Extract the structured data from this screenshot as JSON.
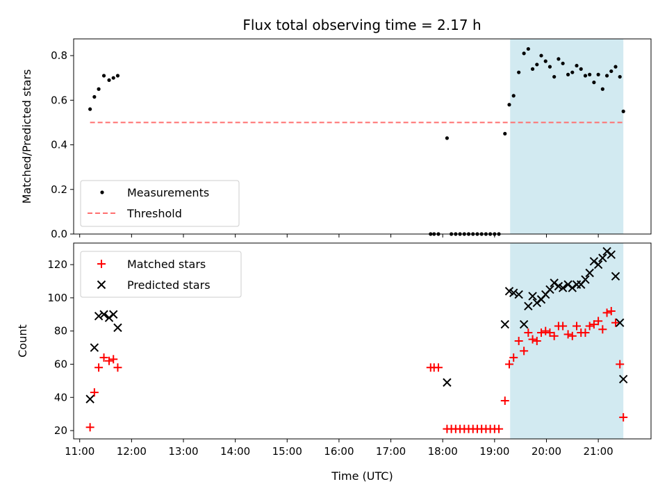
{
  "chart_data": {
    "type": "scatter",
    "title": "Flux total observing time = 2.17 h",
    "colors": {
      "measurements": "#000000",
      "threshold": "#ff6f6f",
      "matched": "#ff0000",
      "predicted": "#000000",
      "highlight": "#add8e6"
    },
    "xlabel": "Time (UTC)",
    "x_ticks": [
      "11:00",
      "12:00",
      "13:00",
      "14:00",
      "15:00",
      "16:00",
      "17:00",
      "18:00",
      "19:00",
      "20:00",
      "21:00"
    ],
    "xlim": [
      "10:53",
      "22:01"
    ],
    "highlight_span": [
      "19:18",
      "21:29"
    ],
    "panels": [
      {
        "ylabel": "Matched/Predicted stars",
        "ylim": [
          0,
          0.875
        ],
        "y_ticks": [
          "0.0",
          "0.2",
          "0.4",
          "0.6",
          "0.8"
        ],
        "legend_position": "lower left",
        "series": [
          {
            "name": "Measurements",
            "marker": "dot",
            "points": [
              [
                "11:12",
                0.56
              ],
              [
                "11:17",
                0.615
              ],
              [
                "11:22",
                0.65
              ],
              [
                "11:28",
                0.71
              ],
              [
                "11:34",
                0.69
              ],
              [
                "11:39",
                0.7
              ],
              [
                "11:44",
                0.71
              ],
              [
                "17:46",
                0.0
              ],
              [
                "17:50",
                0.0
              ],
              [
                "17:55",
                0.0
              ],
              [
                "18:05",
                0.43
              ],
              [
                "18:10",
                0.0
              ],
              [
                "18:15",
                0.0
              ],
              [
                "18:20",
                0.0
              ],
              [
                "18:25",
                0.0
              ],
              [
                "18:30",
                0.0
              ],
              [
                "18:35",
                0.0
              ],
              [
                "18:40",
                0.0
              ],
              [
                "18:45",
                0.0
              ],
              [
                "18:50",
                0.0
              ],
              [
                "18:55",
                0.0
              ],
              [
                "19:00",
                0.0
              ],
              [
                "19:05",
                0.0
              ],
              [
                "19:12",
                0.45
              ],
              [
                "19:17",
                0.58
              ],
              [
                "19:22",
                0.62
              ],
              [
                "19:28",
                0.725
              ],
              [
                "19:34",
                0.81
              ],
              [
                "19:39",
                0.83
              ],
              [
                "19:44",
                0.74
              ],
              [
                "19:49",
                0.76
              ],
              [
                "19:54",
                0.8
              ],
              [
                "19:59",
                0.775
              ],
              [
                "20:04",
                0.75
              ],
              [
                "20:09",
                0.705
              ],
              [
                "20:14",
                0.785
              ],
              [
                "20:19",
                0.765
              ],
              [
                "20:25",
                0.715
              ],
              [
                "20:30",
                0.725
              ],
              [
                "20:35",
                0.755
              ],
              [
                "20:40",
                0.74
              ],
              [
                "20:45",
                0.71
              ],
              [
                "20:50",
                0.715
              ],
              [
                "20:55",
                0.68
              ],
              [
                "21:00",
                0.715
              ],
              [
                "21:05",
                0.65
              ],
              [
                "21:10",
                0.71
              ],
              [
                "21:15",
                0.73
              ],
              [
                "21:20",
                0.75
              ],
              [
                "21:25",
                0.705
              ],
              [
                "21:29",
                0.55
              ]
            ]
          },
          {
            "name": "Threshold",
            "marker": "dashed-line",
            "points": [
              [
                "11:12",
                0.5
              ],
              [
                "21:29",
                0.5
              ]
            ]
          }
        ]
      },
      {
        "ylabel": "Count",
        "ylim": [
          15,
          133
        ],
        "y_ticks": [
          "20",
          "40",
          "60",
          "80",
          "100",
          "120"
        ],
        "legend_position": "upper left",
        "series": [
          {
            "name": "Matched stars",
            "marker": "plus",
            "points": [
              [
                "11:12",
                22
              ],
              [
                "11:17",
                43
              ],
              [
                "11:22",
                58
              ],
              [
                "11:28",
                64
              ],
              [
                "11:34",
                62
              ],
              [
                "11:39",
                63
              ],
              [
                "11:44",
                58
              ],
              [
                "17:46",
                58
              ],
              [
                "17:50",
                58
              ],
              [
                "17:55",
                58
              ],
              [
                "18:05",
                21
              ],
              [
                "18:10",
                21
              ],
              [
                "18:15",
                21
              ],
              [
                "18:20",
                21
              ],
              [
                "18:25",
                21
              ],
              [
                "18:30",
                21
              ],
              [
                "18:35",
                21
              ],
              [
                "18:40",
                21
              ],
              [
                "18:45",
                21
              ],
              [
                "18:50",
                21
              ],
              [
                "18:55",
                21
              ],
              [
                "19:00",
                21
              ],
              [
                "19:05",
                21
              ],
              [
                "19:12",
                38
              ],
              [
                "19:17",
                60
              ],
              [
                "19:22",
                64
              ],
              [
                "19:28",
                74
              ],
              [
                "19:34",
                68
              ],
              [
                "19:39",
                79
              ],
              [
                "19:44",
                75
              ],
              [
                "19:49",
                74
              ],
              [
                "19:54",
                79
              ],
              [
                "19:59",
                80
              ],
              [
                "20:04",
                79
              ],
              [
                "20:09",
                77
              ],
              [
                "20:14",
                83
              ],
              [
                "20:19",
                83
              ],
              [
                "20:25",
                78
              ],
              [
                "20:30",
                77
              ],
              [
                "20:35",
                83
              ],
              [
                "20:40",
                79
              ],
              [
                "20:45",
                79
              ],
              [
                "20:50",
                83
              ],
              [
                "20:55",
                84
              ],
              [
                "21:00",
                86
              ],
              [
                "21:05",
                81
              ],
              [
                "21:10",
                91
              ],
              [
                "21:15",
                92
              ],
              [
                "21:20",
                85
              ],
              [
                "21:25",
                60
              ],
              [
                "21:29",
                28
              ]
            ]
          },
          {
            "name": "Predicted stars",
            "marker": "x",
            "points": [
              [
                "11:12",
                39
              ],
              [
                "11:17",
                70
              ],
              [
                "11:22",
                89
              ],
              [
                "11:28",
                90
              ],
              [
                "11:34",
                88
              ],
              [
                "11:39",
                90
              ],
              [
                "11:44",
                82
              ],
              [
                "18:05",
                49
              ],
              [
                "19:12",
                84
              ],
              [
                "19:17",
                104
              ],
              [
                "19:22",
                103
              ],
              [
                "19:28",
                102
              ],
              [
                "19:34",
                84
              ],
              [
                "19:39",
                95
              ],
              [
                "19:44",
                101
              ],
              [
                "19:49",
                97
              ],
              [
                "19:54",
                99
              ],
              [
                "19:59",
                102
              ],
              [
                "20:04",
                105
              ],
              [
                "20:09",
                109
              ],
              [
                "20:14",
                107
              ],
              [
                "20:19",
                106
              ],
              [
                "20:25",
                108
              ],
              [
                "20:30",
                106
              ],
              [
                "20:35",
                108
              ],
              [
                "20:40",
                108
              ],
              [
                "20:45",
                111
              ],
              [
                "20:50",
                115
              ],
              [
                "20:55",
                122
              ],
              [
                "21:00",
                120
              ],
              [
                "21:05",
                124
              ],
              [
                "21:10",
                128
              ],
              [
                "21:15",
                126
              ],
              [
                "21:20",
                113
              ],
              [
                "21:25",
                85
              ],
              [
                "21:29",
                51
              ]
            ]
          }
        ]
      }
    ]
  }
}
